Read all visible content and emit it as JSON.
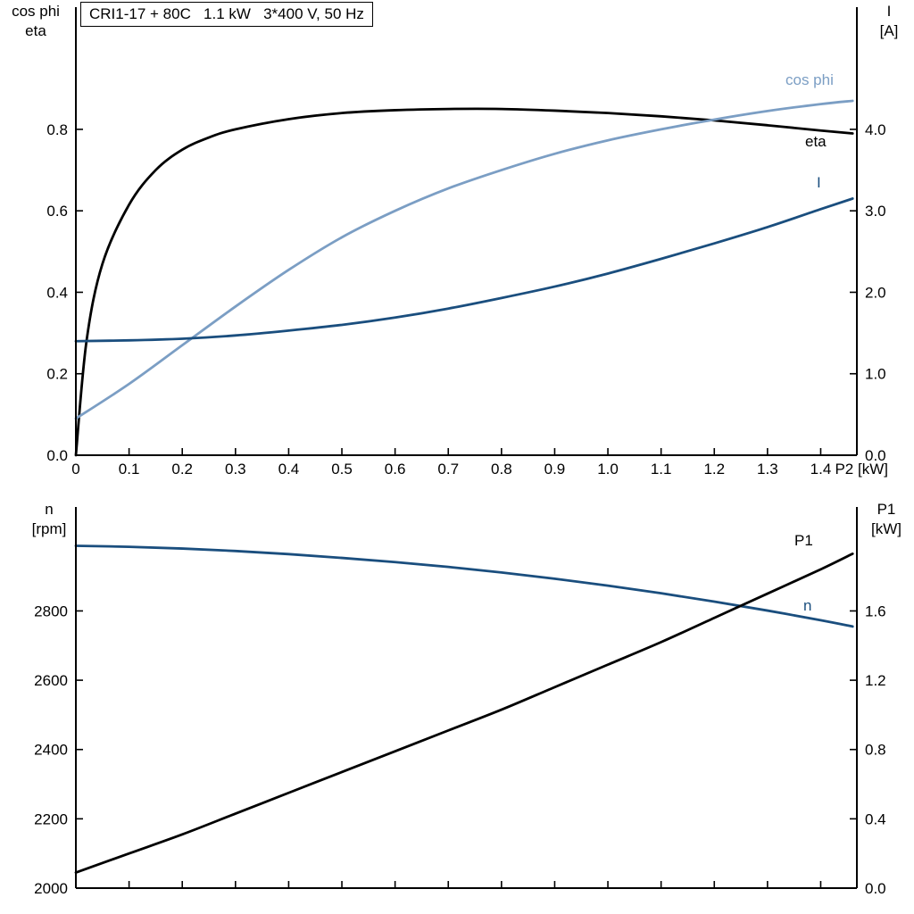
{
  "title_box": "CRI1-17 + 80C   1.1 kW   3*400 V, 50 Hz",
  "colors": {
    "black": "#000000",
    "light_blue": "#7b9ec4",
    "dark_blue": "#1a4e7e",
    "axis": "#000000",
    "background": "#ffffff"
  },
  "labels": {
    "top_left_line1": "cos phi",
    "top_left_line2": "eta",
    "top_right_line1": "I",
    "top_right_line2": "[A]",
    "bottom_left_line1": "n",
    "bottom_left_line2": "[rpm]",
    "bottom_right_line1": "P1",
    "bottom_right_line2": "[kW]",
    "curve_cosphi": "cos phi",
    "curve_eta": "eta",
    "curve_I": "I",
    "curve_P1": "P1",
    "curve_n": "n"
  },
  "chart_data": [
    {
      "type": "line",
      "title": "CRI1-17 + 80C   1.1 kW   3*400 V, 50 Hz",
      "grid": false,
      "legend_position": "labels-at-curve-ends",
      "x_axis": {
        "label": "P2 [kW]",
        "range": [
          0,
          1.468
        ],
        "ticks": [
          0,
          0.1,
          0.2,
          0.3,
          0.4,
          0.5,
          0.6,
          0.7,
          0.8,
          0.9,
          1.0,
          1.1,
          1.2,
          1.3,
          1.4
        ],
        "tick_labels": [
          "0",
          "0.1",
          "0.2",
          "0.3",
          "0.4",
          "0.5",
          "0.6",
          "0.7",
          "0.8",
          "0.9",
          "1.0",
          "1.1",
          "1.2",
          "1.3",
          "1.4"
        ]
      },
      "y_left": {
        "label": "cos phi / eta",
        "range": [
          0,
          1.1
        ],
        "ticks": [
          0.0,
          0.2,
          0.4,
          0.6,
          0.8
        ],
        "tick_labels": [
          "0.0",
          "0.2",
          "0.4",
          "0.6",
          "0.8"
        ]
      },
      "y_right": {
        "label": "I [A]",
        "range": [
          0,
          5.5
        ],
        "ticks": [
          0.0,
          1.0,
          2.0,
          3.0,
          4.0
        ],
        "tick_labels": [
          "0.0",
          "1.0",
          "2.0",
          "3.0",
          "4.0"
        ]
      },
      "series": [
        {
          "name": "eta",
          "axis": "left",
          "color": "#000000",
          "x": [
            0,
            0.02,
            0.05,
            0.1,
            0.15,
            0.2,
            0.25,
            0.3,
            0.4,
            0.5,
            0.6,
            0.7,
            0.8,
            0.9,
            1.0,
            1.1,
            1.2,
            1.3,
            1.4,
            1.46
          ],
          "y": [
            0,
            0.28,
            0.47,
            0.615,
            0.7,
            0.75,
            0.78,
            0.8,
            0.825,
            0.84,
            0.847,
            0.85,
            0.85,
            0.846,
            0.84,
            0.832,
            0.822,
            0.81,
            0.797,
            0.79
          ]
        },
        {
          "name": "cos phi",
          "axis": "left",
          "color": "#7b9ec4",
          "x": [
            0,
            0.1,
            0.2,
            0.3,
            0.4,
            0.5,
            0.6,
            0.7,
            0.8,
            0.9,
            1.0,
            1.1,
            1.2,
            1.3,
            1.4,
            1.46
          ],
          "y": [
            0.09,
            0.175,
            0.27,
            0.365,
            0.455,
            0.535,
            0.6,
            0.655,
            0.7,
            0.74,
            0.773,
            0.8,
            0.824,
            0.845,
            0.862,
            0.87
          ]
        },
        {
          "name": "I",
          "axis": "right",
          "color": "#1a4e7e",
          "x": [
            0,
            0.1,
            0.2,
            0.3,
            0.4,
            0.5,
            0.6,
            0.7,
            0.8,
            0.9,
            1.0,
            1.1,
            1.2,
            1.3,
            1.4,
            1.46
          ],
          "y": [
            1.4,
            1.41,
            1.43,
            1.47,
            1.53,
            1.6,
            1.69,
            1.8,
            1.93,
            2.07,
            2.23,
            2.41,
            2.6,
            2.8,
            3.02,
            3.15
          ]
        }
      ]
    },
    {
      "type": "line",
      "title": "",
      "grid": false,
      "legend_position": "labels-at-curve-ends",
      "x_axis": {
        "label": "",
        "range": [
          0,
          1.468
        ],
        "ticks": [
          0,
          0.1,
          0.2,
          0.3,
          0.4,
          0.5,
          0.6,
          0.7,
          0.8,
          0.9,
          1.0,
          1.1,
          1.2,
          1.3,
          1.4
        ],
        "tick_labels": []
      },
      "y_left": {
        "label": "n [rpm]",
        "range": [
          2000,
          3100
        ],
        "ticks": [
          2000,
          2200,
          2400,
          2600,
          2800
        ],
        "tick_labels": [
          "2000",
          "2200",
          "2400",
          "2600",
          "2800"
        ]
      },
      "y_right": {
        "label": "P1 [kW]",
        "range": [
          0,
          2.2
        ],
        "ticks": [
          0.0,
          0.4,
          0.8,
          1.2,
          1.6
        ],
        "tick_labels": [
          "0.0",
          "0.4",
          "0.8",
          "1.2",
          "1.6"
        ]
      },
      "series": [
        {
          "name": "n",
          "axis": "left",
          "color": "#1a4e7e",
          "x": [
            0,
            0.1,
            0.2,
            0.3,
            0.4,
            0.5,
            0.6,
            0.7,
            0.8,
            0.9,
            1.0,
            1.1,
            1.2,
            1.3,
            1.4,
            1.46
          ],
          "y": [
            2988,
            2985,
            2980,
            2973,
            2964,
            2953,
            2941,
            2927,
            2911,
            2893,
            2873,
            2851,
            2827,
            2801,
            2773,
            2755
          ]
        },
        {
          "name": "P1",
          "axis": "right",
          "color": "#000000",
          "x": [
            0,
            0.1,
            0.2,
            0.3,
            0.4,
            0.5,
            0.6,
            0.7,
            0.8,
            0.9,
            1.0,
            1.1,
            1.2,
            1.3,
            1.4,
            1.46
          ],
          "y": [
            0.09,
            0.2,
            0.31,
            0.43,
            0.55,
            0.67,
            0.79,
            0.91,
            1.03,
            1.16,
            1.29,
            1.42,
            1.56,
            1.7,
            1.84,
            1.93
          ]
        }
      ]
    }
  ]
}
